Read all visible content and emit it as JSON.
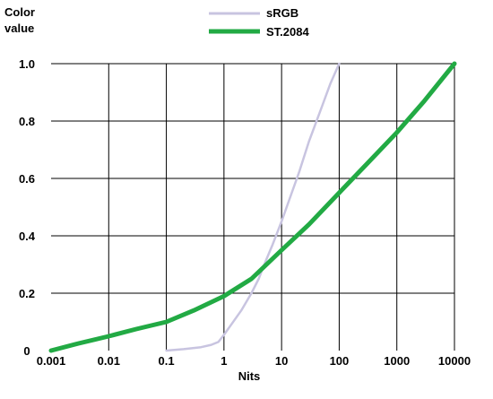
{
  "chart_data": {
    "type": "line",
    "xlabel": "Nits",
    "ylabel": [
      "Color",
      "value"
    ],
    "x_scale": "log",
    "xlim": [
      0.001,
      10000
    ],
    "ylim": [
      0,
      1.0
    ],
    "x_ticks": [
      "0.001",
      "0.01",
      "0.1",
      "1",
      "10",
      "100",
      "1000",
      "10000"
    ],
    "y_ticks": [
      "0",
      "0.2",
      "0.4",
      "0.6",
      "0.8",
      "1.0"
    ],
    "grid": true,
    "legend_position": "top-center",
    "series": [
      {
        "name": "sRGB",
        "color": "#c8c4e0",
        "x": [
          0.1,
          0.2,
          0.4,
          0.6,
          0.8,
          1,
          2,
          3,
          4,
          5,
          7,
          10,
          15,
          20,
          30,
          50,
          70,
          100
        ],
        "y": [
          0.0,
          0.005,
          0.012,
          0.02,
          0.03,
          0.055,
          0.14,
          0.2,
          0.25,
          0.3,
          0.37,
          0.45,
          0.55,
          0.62,
          0.73,
          0.85,
          0.93,
          1.0
        ]
      },
      {
        "name": "ST.2084",
        "color": "#22aa44",
        "x": [
          0.001,
          0.003,
          0.01,
          0.03,
          0.1,
          0.3,
          1,
          3,
          10,
          30,
          100,
          300,
          1000,
          3000,
          10000
        ],
        "y": [
          0.0,
          0.025,
          0.05,
          0.075,
          0.1,
          0.14,
          0.19,
          0.25,
          0.35,
          0.44,
          0.55,
          0.65,
          0.76,
          0.87,
          1.0
        ]
      }
    ]
  }
}
